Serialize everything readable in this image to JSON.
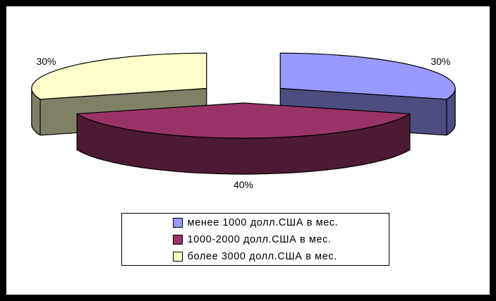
{
  "chart_data": {
    "type": "pie",
    "style": "3d-exploded-pie",
    "title": "",
    "slices": [
      {
        "label": "менее 1000 долл.США в мес.",
        "value": 30,
        "display": "30%",
        "color": "#9999FF",
        "side_color": "#4D4D80"
      },
      {
        "label": "1000-2000 долл.США в мес.",
        "value": 40,
        "display": "40%",
        "color": "#993366",
        "side_color": "#4D1A33"
      },
      {
        "label": "более 3000 долл.США в мес.",
        "value": 30,
        "display": "30%",
        "color": "#FFFFCC",
        "side_color": "#808066"
      }
    ],
    "start_angle_deg": 90,
    "direction": "clockwise",
    "legend_position": "bottom-center",
    "outline_color": "#000000",
    "label_color": "#000000",
    "background_color": "#FFFFFF",
    "frame_color": "#000000"
  }
}
